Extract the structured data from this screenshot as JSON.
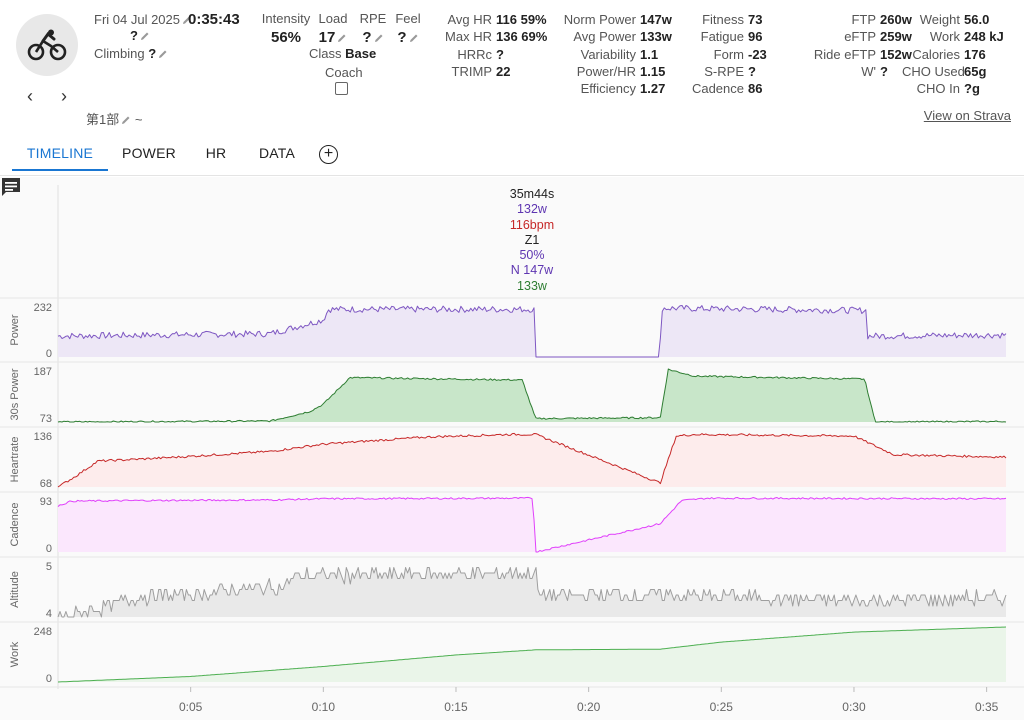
{
  "header": {
    "date": "Fri 04 Jul 2025",
    "duration": "0:35:43",
    "title": "?",
    "climbing_label": "Climbing",
    "climbing_value": "?",
    "caption": "第1部",
    "caption_suffix": "~",
    "view_on_strava": "View on Strava",
    "nav_prev": "‹",
    "nav_next": "›"
  },
  "mini_stats": {
    "intensity_label": "Intensity",
    "intensity_value": "56%",
    "load_label": "Load",
    "load_value": "17",
    "rpe_label": "RPE",
    "rpe_value": "?",
    "feel_label": "Feel",
    "feel_value": "?",
    "class_label": "Class",
    "class_value": "Base",
    "coach_label": "Coach"
  },
  "stats": {
    "col1": [
      {
        "label": "Avg HR",
        "value": "116 59%"
      },
      {
        "label": "Max HR",
        "value": "136 69%"
      },
      {
        "label": "HRRc",
        "value": "?"
      },
      {
        "label": "TRIMP",
        "value": "22"
      }
    ],
    "col2": [
      {
        "label": "Norm Power",
        "value": "147w"
      },
      {
        "label": "Avg Power",
        "value": "133w"
      },
      {
        "label": "Variability",
        "value": "1.1"
      },
      {
        "label": "Power/HR",
        "value": "1.15"
      },
      {
        "label": "Efficiency",
        "value": "1.27"
      }
    ],
    "col3": [
      {
        "label": "Fitness",
        "value": "73"
      },
      {
        "label": "Fatigue",
        "value": "96"
      },
      {
        "label": "Form",
        "value": "-23"
      },
      {
        "label": "S-RPE",
        "value": "?"
      },
      {
        "label": "Cadence",
        "value": "86"
      }
    ],
    "col4": [
      {
        "label": "FTP",
        "value": "260w"
      },
      {
        "label": "eFTP",
        "value": "259w"
      },
      {
        "label": "Ride eFTP",
        "value": "152w"
      },
      {
        "label": "W'",
        "value": "?"
      }
    ],
    "col5": [
      {
        "label": "Weight",
        "value": "56.0"
      },
      {
        "label": "Work",
        "value": "248 kJ"
      },
      {
        "label": "Calories",
        "value": "176"
      },
      {
        "label": "CHO Used",
        "value": "65g"
      },
      {
        "label": "CHO In",
        "value": "?g"
      }
    ]
  },
  "tabs": [
    "TIMELINE",
    "POWER",
    "HR",
    "DATA"
  ],
  "active_tab": "TIMELINE",
  "cursor": {
    "time": "35m44s",
    "power": "132w",
    "hr": "116bpm",
    "zone": "Z1",
    "pct": "50%",
    "np": "N 147w",
    "avg": "133w"
  },
  "colors": {
    "accent": "#1976d2",
    "power": "#7e57c2",
    "power30": "#2e7d32",
    "hr": "#c62828",
    "cadence": "#e040fb",
    "altitude": "#9e9e9e",
    "work": "#4caf50"
  },
  "icons": {
    "avatar": "cycling-icon",
    "comment": "comment-icon",
    "edit": "pencil-icon",
    "add": "plus-circle-icon"
  },
  "chart_data": {
    "type": "line",
    "x_unit": "minutes",
    "x_range": [
      0,
      35.73
    ],
    "x_ticks": [
      "0:05",
      "0:10",
      "0:15",
      "0:20",
      "0:25",
      "0:30",
      "0:35"
    ],
    "panels": [
      {
        "name": "Power",
        "ylim": [
          0,
          232
        ],
        "ticks": [
          "232",
          "0"
        ],
        "x": [
          0,
          8,
          10,
          10.2,
          18,
          18.01,
          22.7,
          22.71,
          30.5,
          30.51,
          35.73
        ],
        "y": [
          90,
          100,
          160,
          205,
          205,
          0,
          0,
          210,
          200,
          90,
          95
        ]
      },
      {
        "name": "30s Power",
        "ylim": [
          73,
          187
        ],
        "ticks": [
          "187",
          "73"
        ],
        "x": [
          0,
          8,
          9.5,
          10,
          11,
          17.5,
          18,
          22.7,
          23,
          24,
          30.4,
          30.8,
          35.73
        ],
        "y": [
          73,
          75,
          95,
          110,
          165,
          160,
          80,
          82,
          182,
          168,
          162,
          73,
          74
        ]
      },
      {
        "name": "Heartrate",
        "ylim": [
          68,
          136
        ],
        "ticks": [
          "136",
          "68"
        ],
        "x": [
          0,
          0.6,
          1.5,
          4,
          8,
          10,
          14,
          17,
          18,
          22.7,
          23.3,
          24,
          30,
          31.5,
          35.73
        ],
        "y": [
          68,
          80,
          100,
          104,
          112,
          121,
          130,
          133,
          133,
          73,
          131,
          133,
          131,
          108,
          105
        ]
      },
      {
        "name": "Cadence",
        "ylim": [
          0,
          93
        ],
        "ticks": [
          "93",
          "0"
        ],
        "x": [
          0,
          0.5,
          3,
          8,
          10,
          17.9,
          18,
          22.7,
          23.5,
          24.5,
          35.73
        ],
        "y": [
          78,
          86,
          87,
          88,
          90,
          91,
          0,
          48,
          87,
          91,
          90
        ]
      },
      {
        "name": "Altitude",
        "ylim": [
          4,
          5
        ],
        "ticks": [
          "5",
          "4"
        ],
        "x": [
          0,
          1.5,
          3,
          8.5,
          9,
          18,
          18.1,
          22.7,
          30,
          35.73
        ],
        "y": [
          4.0,
          4.15,
          4.35,
          4.55,
          4.75,
          4.8,
          4.4,
          4.4,
          4.3,
          4.35
        ]
      },
      {
        "name": "Work",
        "ylim": [
          0,
          248
        ],
        "ticks": [
          "248",
          "0"
        ],
        "x": [
          0,
          5,
          10,
          15,
          18,
          22.7,
          25,
          30,
          35.73
        ],
        "y": [
          0,
          25,
          70,
          122,
          145,
          148,
          180,
          225,
          248
        ]
      }
    ]
  }
}
